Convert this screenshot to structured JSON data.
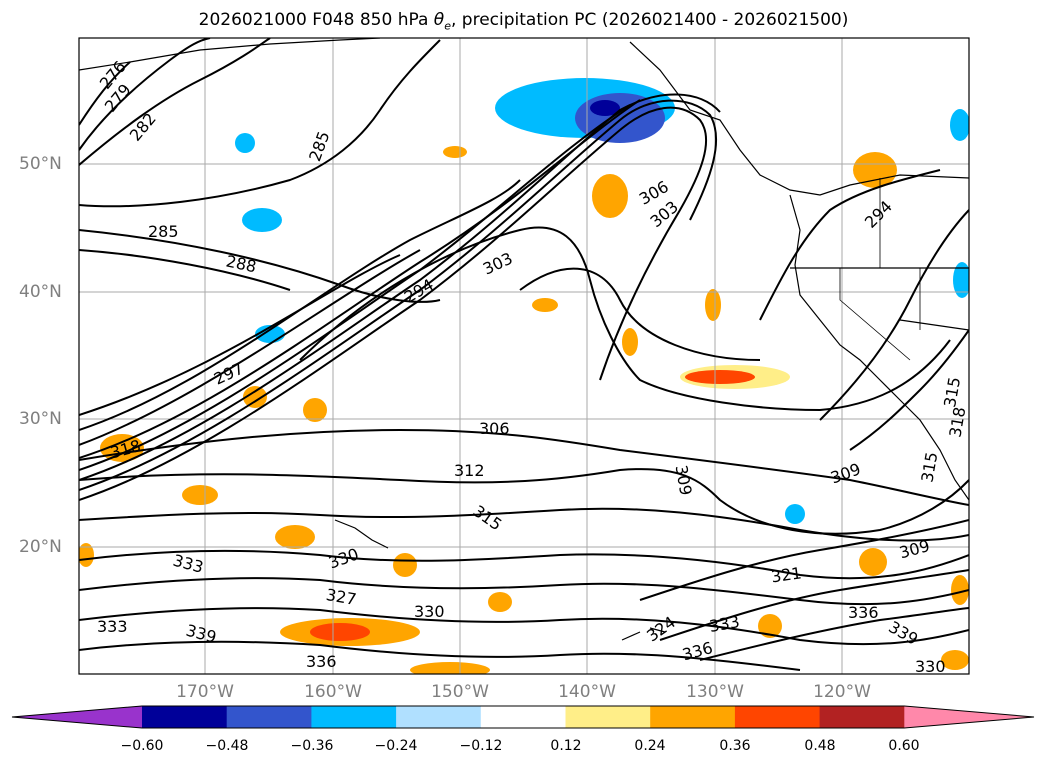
{
  "title": {
    "prefix": "2026021000 F048 850 hPa ",
    "theta": "θ",
    "theta_sub": "e",
    "suffix": ", precipitation PC (2026021400 - 2026021500)"
  },
  "map": {
    "lat_labels": [
      "50°N",
      "40°N",
      "30°N",
      "20°N"
    ],
    "lon_labels": [
      "170°W",
      "160°W",
      "150°W",
      "140°W",
      "130°W",
      "120°W"
    ],
    "contour_labels": [
      "276",
      "279",
      "282",
      "285",
      "285",
      "288",
      "294",
      "303",
      "306",
      "303",
      "297",
      "318",
      "306",
      "312",
      "309",
      "315",
      "309",
      "330",
      "333",
      "327",
      "330",
      "333",
      "339",
      "336",
      "324",
      "333",
      "336",
      "321",
      "309",
      "336",
      "339",
      "330",
      "294",
      "315",
      "318",
      "315"
    ]
  },
  "colorbar": {
    "ticks": [
      "−0.60",
      "−0.48",
      "−0.36",
      "−0.24",
      "−0.12",
      "0.12",
      "0.24",
      "0.36",
      "0.48",
      "0.60"
    ],
    "colors": {
      "under": "#9933cc",
      "bins": [
        "#000099",
        "#3355cc",
        "#00bbff",
        "#b0e0ff",
        "#ffffff",
        "#ffee88",
        "#ffa500",
        "#ff4500",
        "#b22222"
      ],
      "over": "#ff88aa"
    }
  }
}
